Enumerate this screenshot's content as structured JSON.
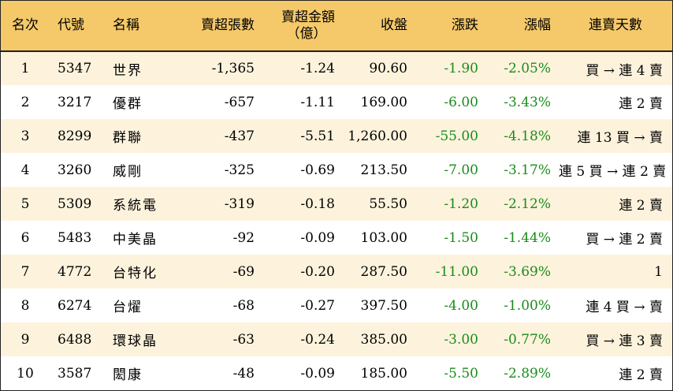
{
  "colors": {
    "header_bg": "#f5c96a",
    "stripe_bg": "#fdf3dd",
    "row_bg": "#ffffff",
    "negative_text": "#1a8c1a",
    "border": "#222222"
  },
  "headers": {
    "rank": "名次",
    "code": "代號",
    "name": "名稱",
    "net_sell_lots": "賣超張數",
    "net_sell_amount_line1": "賣超金額",
    "net_sell_amount_line2": "（億）",
    "close": "收盤",
    "change": "漲跌",
    "change_pct": "漲幅",
    "streak": "連賣天數"
  },
  "rows": [
    {
      "rank": "1",
      "code": "5347",
      "name": "世界",
      "lots": "-1,365",
      "amount": "-1.24",
      "close": "90.60",
      "change": "-1.90",
      "pct": "-2.05%",
      "streak": "買 → 連 4 賣"
    },
    {
      "rank": "2",
      "code": "3217",
      "name": "優群",
      "lots": "-657",
      "amount": "-1.11",
      "close": "169.00",
      "change": "-6.00",
      "pct": "-3.43%",
      "streak": "連 2 賣"
    },
    {
      "rank": "3",
      "code": "8299",
      "name": "群聯",
      "lots": "-437",
      "amount": "-5.51",
      "close": "1,260.00",
      "change": "-55.00",
      "pct": "-4.18%",
      "streak": "連 13 買 → 賣"
    },
    {
      "rank": "4",
      "code": "3260",
      "name": "威剛",
      "lots": "-325",
      "amount": "-0.69",
      "close": "213.50",
      "change": "-7.00",
      "pct": "-3.17%",
      "streak": "連 5 買 → 連 2 賣"
    },
    {
      "rank": "5",
      "code": "5309",
      "name": "系統電",
      "lots": "-319",
      "amount": "-0.18",
      "close": "55.50",
      "change": "-1.20",
      "pct": "-2.12%",
      "streak": "連 2 賣"
    },
    {
      "rank": "6",
      "code": "5483",
      "name": "中美晶",
      "lots": "-92",
      "amount": "-0.09",
      "close": "103.00",
      "change": "-1.50",
      "pct": "-1.44%",
      "streak": "買 → 連 2 賣"
    },
    {
      "rank": "7",
      "code": "4772",
      "name": "台特化",
      "lots": "-69",
      "amount": "-0.20",
      "close": "287.50",
      "change": "-11.00",
      "pct": "-3.69%",
      "streak": "1"
    },
    {
      "rank": "8",
      "code": "6274",
      "name": "台燿",
      "lots": "-68",
      "amount": "-0.27",
      "close": "397.50",
      "change": "-4.00",
      "pct": "-1.00%",
      "streak": "連 4 買 → 賣"
    },
    {
      "rank": "9",
      "code": "6488",
      "name": "環球晶",
      "lots": "-63",
      "amount": "-0.24",
      "close": "385.00",
      "change": "-3.00",
      "pct": "-0.77%",
      "streak": "買 → 連 3 賣"
    },
    {
      "rank": "10",
      "code": "3587",
      "name": "閎康",
      "lots": "-48",
      "amount": "-0.09",
      "close": "185.00",
      "change": "-5.50",
      "pct": "-2.89%",
      "streak": "連 2 賣"
    }
  ]
}
